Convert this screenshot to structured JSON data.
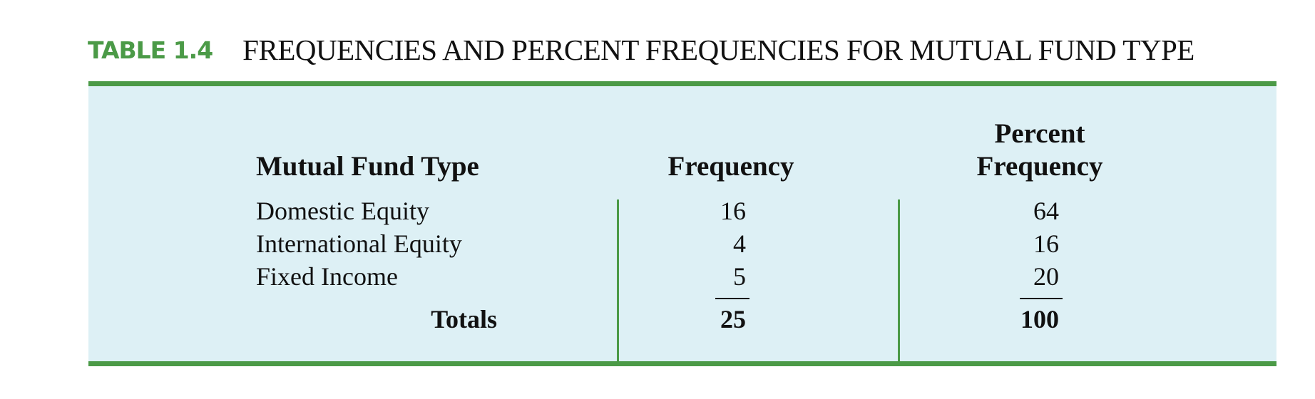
{
  "table": {
    "label": "TABLE 1.4",
    "title": "FREQUENCIES AND PERCENT FREQUENCIES FOR MUTUAL FUND TYPE",
    "headers": {
      "type": "Mutual Fund Type",
      "frequency": "Frequency",
      "percent_line1": "Percent",
      "percent_line2": "Frequency"
    },
    "rows": [
      {
        "type": "Domestic Equity",
        "frequency": "16",
        "percent": "64"
      },
      {
        "type": "International Equity",
        "frequency": "4",
        "percent": "16"
      },
      {
        "type": "Fixed Income",
        "frequency": "5",
        "percent": "20"
      }
    ],
    "totals": {
      "label": "Totals",
      "frequency": "25",
      "percent": "100"
    },
    "colors": {
      "accent_green": "#4b9a47",
      "panel_background": "#ddf0f5",
      "text": "#111111"
    }
  }
}
